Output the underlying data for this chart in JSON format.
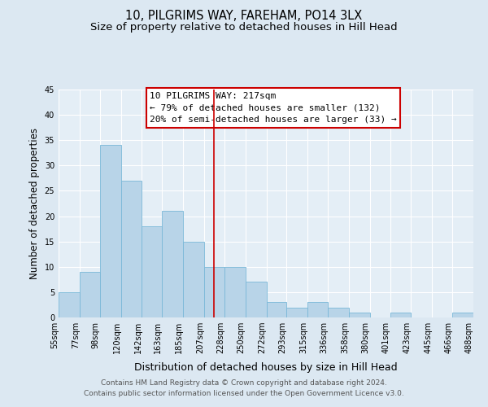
{
  "title": "10, PILGRIMS WAY, FAREHAM, PO14 3LX",
  "subtitle": "Size of property relative to detached houses in Hill Head",
  "xlabel": "Distribution of detached houses by size in Hill Head",
  "ylabel": "Number of detached properties",
  "bin_edges": [
    55,
    77,
    98,
    120,
    142,
    163,
    185,
    207,
    228,
    250,
    272,
    293,
    315,
    336,
    358,
    380,
    401,
    423,
    445,
    466,
    488
  ],
  "bin_counts": [
    5,
    9,
    34,
    27,
    18,
    21,
    15,
    10,
    10,
    7,
    3,
    2,
    3,
    2,
    1,
    0,
    1,
    0,
    0,
    1
  ],
  "bar_color": "#b8d4e8",
  "bar_edge_color": "#7ab8d8",
  "bar_edge_width": 0.6,
  "vline_x": 217,
  "vline_color": "#cc0000",
  "ylim": [
    0,
    45
  ],
  "yticks": [
    0,
    5,
    10,
    15,
    20,
    25,
    30,
    35,
    40,
    45
  ],
  "annotation_box_text": "10 PILGRIMS WAY: 217sqm\n← 79% of detached houses are smaller (132)\n20% of semi-detached houses are larger (33) →",
  "box_edge_color": "#cc0000",
  "background_color": "#dce8f2",
  "plot_bg_color": "#e4eef6",
  "footer_line1": "Contains HM Land Registry data © Crown copyright and database right 2024.",
  "footer_line2": "Contains public sector information licensed under the Open Government Licence v3.0.",
  "title_fontsize": 10.5,
  "subtitle_fontsize": 9.5,
  "xlabel_fontsize": 9,
  "ylabel_fontsize": 8.5,
  "tick_label_fontsize": 7,
  "annotation_fontsize": 8,
  "footer_fontsize": 6.5
}
